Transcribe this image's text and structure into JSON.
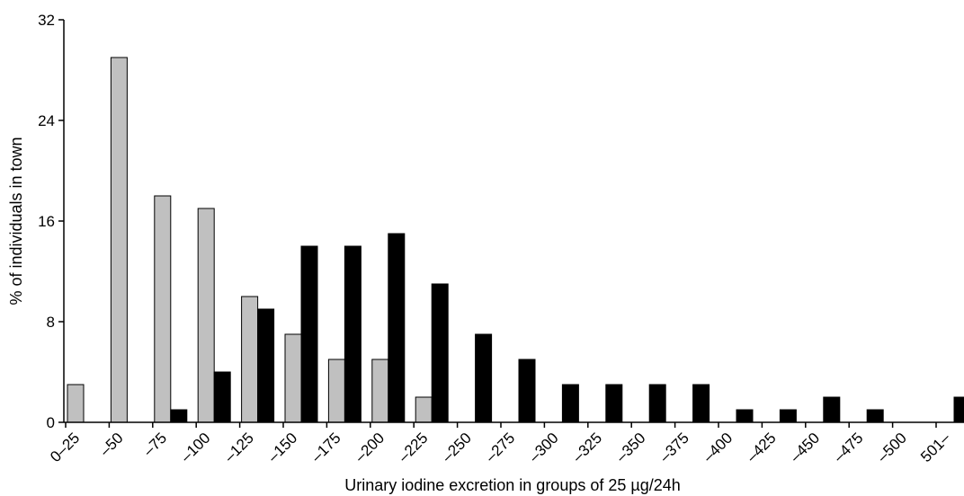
{
  "chart_data": {
    "type": "bar",
    "title": "",
    "xlabel": "Urinary iodine excretion in groups of 25 µg/24h",
    "ylabel": "% of individuals in town",
    "ylim": [
      0,
      32
    ],
    "yticks": [
      0,
      8,
      16,
      24,
      32
    ],
    "grid": false,
    "legend": "none",
    "categories": [
      "0–25",
      "–50",
      "–75",
      "–100",
      "–125",
      "–150",
      "–175",
      "–200",
      "–225",
      "–250",
      "–275",
      "–300",
      "–325",
      "–350",
      "–375",
      "–400",
      "–425",
      "–450",
      "–475",
      "–500",
      "501–"
    ],
    "series": [
      {
        "color": "#c0c0c0",
        "values": [
          3,
          29,
          18,
          17,
          10,
          7,
          5,
          5,
          2,
          0,
          0,
          0,
          0,
          0,
          0,
          0,
          0,
          0,
          0,
          0,
          0
        ]
      },
      {
        "color": "#000000",
        "values": [
          0,
          0,
          1,
          4,
          9,
          14,
          14,
          15,
          11,
          7,
          5,
          3,
          3,
          3,
          3,
          1,
          1,
          2,
          1,
          0,
          2
        ]
      }
    ]
  }
}
